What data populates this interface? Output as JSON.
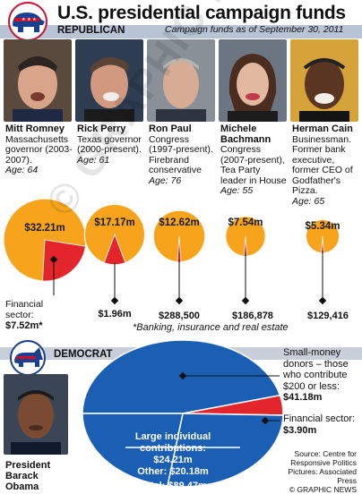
{
  "header": {
    "title": "U.S. presidential campaign funds",
    "republican_label": "REPUBLICAN",
    "subtitle": "Campaign funds as of September 30, 2011",
    "democrat_label": "DEMOCRAT"
  },
  "colors": {
    "republican_band": "#b8c4d6",
    "total_fund": "#f7a41c",
    "financial_sector": "#e3262c",
    "democrat_fund": "#1a5fb4",
    "dem_band": "#c9cfd9"
  },
  "icons": {
    "republican": "elephant-icon",
    "democrat": "donkey-icon"
  },
  "chart_data": [
    {
      "type": "bubble",
      "unit": "$",
      "candidates": [
        {
          "name": "Mitt Romney",
          "bio": "Massachusetts governor (2003-2007).",
          "age": "Age: 64",
          "total": 32.21,
          "total_label": "$32.21m",
          "financial": 7.52,
          "financial_label": "Financial sector: $7.52m*"
        },
        {
          "name": "Rick Perry",
          "bio": "Texas governor (2000-present).",
          "age": "Age: 61",
          "total": 17.17,
          "total_label": "$17.17m",
          "financial": 1.96,
          "financial_label": "$1.96m"
        },
        {
          "name": "Ron Paul",
          "bio": "Congress (1997-present). Firebrand conservative",
          "age": "Age: 76",
          "total": 12.62,
          "total_label": "$12.62m",
          "financial": 0.2885,
          "financial_label": "$288,500"
        },
        {
          "name": "Michele Bachmann",
          "bio": "Congress (2007-present), Tea Party leader in House",
          "age": "Age: 55",
          "total": 7.54,
          "total_label": "$7.54m",
          "financial": 0.186878,
          "financial_label": "$186,878"
        },
        {
          "name": "Herman Cain",
          "bio": "Businessman. Former bank executive, former CEO of Godfather's Pizza.",
          "age": "Age: 65",
          "total": 5.34,
          "total_label": "$5.34m",
          "financial": 0.129416,
          "financial_label": "$129,416"
        }
      ],
      "financial_prefix": "Financial sector:",
      "footnote": "*Banking, insurance and real estate"
    },
    {
      "type": "pie",
      "candidate": "President Barack Obama",
      "total": 89.47,
      "slices": [
        {
          "name": "Small-money donors – those who contribute $200 or less:",
          "value": 41.18,
          "label": "$41.18m"
        },
        {
          "name": "Financial sector:",
          "value": 3.9,
          "label": "$3.90m"
        },
        {
          "name": "Large individual contributions:",
          "value": 24.21,
          "label": "$24.21m"
        },
        {
          "name": "Other:",
          "value": 20.18,
          "label": "$20.18m"
        }
      ],
      "total_label": "Total: $89.47m"
    }
  ],
  "source": {
    "line1": "Source: Centre for",
    "line2": "Responsive Politics",
    "line3": "Pictures: Associated Press",
    "line4": "© GRAPHIC NEWS"
  },
  "watermark": "© GRAPHIC NEWS"
}
